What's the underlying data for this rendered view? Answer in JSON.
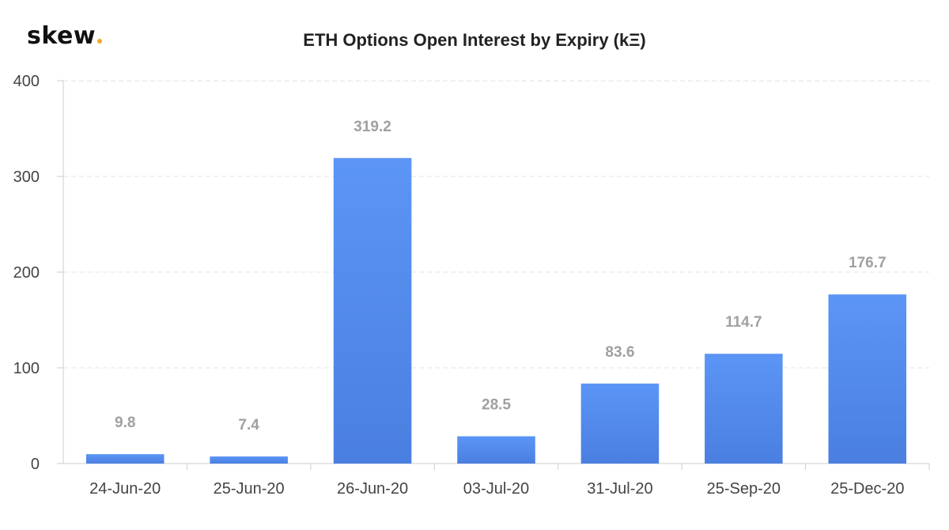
{
  "brand": {
    "name": "skew",
    "accent": "#f5a623"
  },
  "chart_data": {
    "type": "bar",
    "title": "ETH Options Open Interest by Expiry (kΞ)",
    "xlabel": "",
    "ylabel": "",
    "categories": [
      "24-Jun-20",
      "25-Jun-20",
      "26-Jun-20",
      "03-Jul-20",
      "31-Jul-20",
      "25-Sep-20",
      "25-Dec-20"
    ],
    "values": [
      9.8,
      7.4,
      319.2,
      28.5,
      83.6,
      114.7,
      176.7
    ],
    "value_labels": [
      "9.8",
      "7.4",
      "319.2",
      "28.5",
      "83.6",
      "114.7",
      "176.7"
    ],
    "ylim": [
      0,
      400
    ],
    "yticks": [
      0,
      100,
      200,
      300,
      400
    ],
    "ytick_labels": [
      "0",
      "100",
      "200",
      "300",
      "400"
    ],
    "grid": true,
    "legend": "none",
    "colors": {
      "bar_top": "#5b95f5",
      "bar_bottom": "#4a7fe0",
      "data_label": "#a0a0a0",
      "grid": "#e3e3e3",
      "axis": "#cccccc",
      "tick_label": "#444444"
    }
  }
}
